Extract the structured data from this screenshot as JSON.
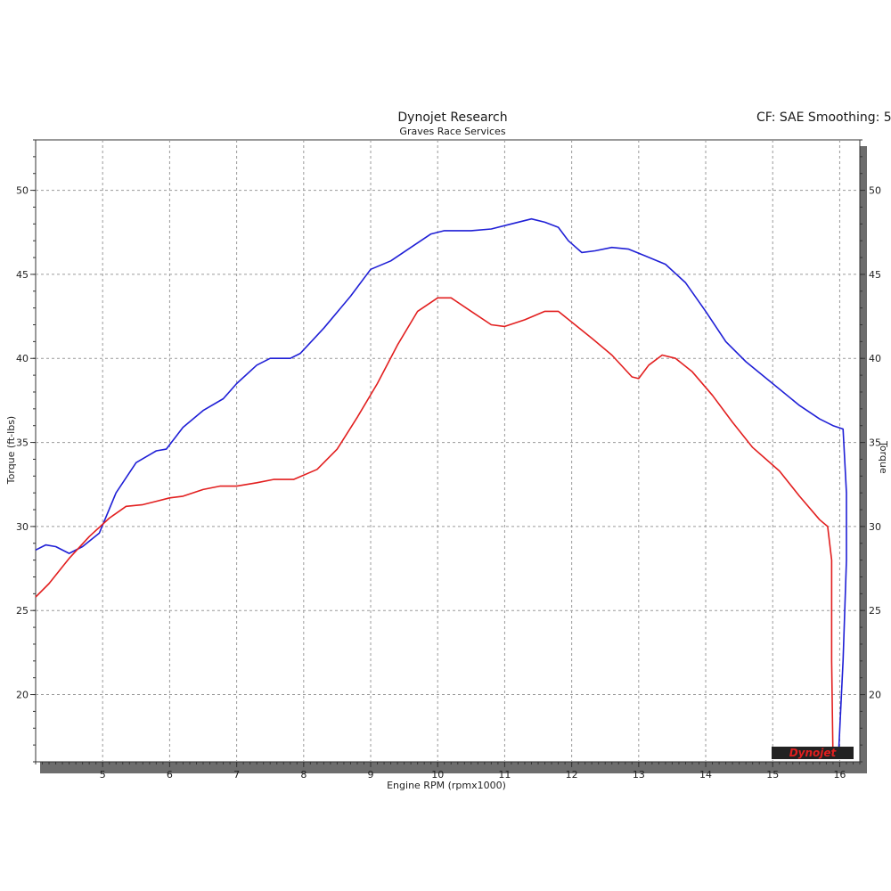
{
  "chart_data": {
    "type": "line",
    "title": "Dynojet Research",
    "subtitle": "Graves Race Services",
    "header_right": "CF: SAE Smoothing: 5",
    "xlabel": "Engine RPM (rpmx1000)",
    "ylabel": "Torque (ft-lbs)",
    "ylabel_right": "Torque",
    "xlim": [
      4.0,
      16.3
    ],
    "ylim": [
      16,
      53
    ],
    "x_ticks": [
      "5",
      "6",
      "7",
      "8",
      "9",
      "10",
      "11",
      "12",
      "13",
      "14",
      "15",
      "16"
    ],
    "y_ticks": [
      "20",
      "25",
      "30",
      "35",
      "40",
      "45",
      "50"
    ],
    "grid": true,
    "logo_text": "Dynojet",
    "series": [
      {
        "color": "#1f1fd6",
        "points": [
          [
            4.0,
            28.6
          ],
          [
            4.15,
            28.9
          ],
          [
            4.3,
            28.8
          ],
          [
            4.5,
            28.4
          ],
          [
            4.7,
            28.8
          ],
          [
            4.95,
            29.6
          ],
          [
            5.2,
            32.0
          ],
          [
            5.5,
            33.8
          ],
          [
            5.8,
            34.5
          ],
          [
            5.95,
            34.6
          ],
          [
            6.2,
            35.9
          ],
          [
            6.5,
            36.9
          ],
          [
            6.8,
            37.6
          ],
          [
            7.0,
            38.5
          ],
          [
            7.3,
            39.6
          ],
          [
            7.5,
            40.0
          ],
          [
            7.8,
            40.0
          ],
          [
            7.95,
            40.3
          ],
          [
            8.3,
            41.8
          ],
          [
            8.7,
            43.7
          ],
          [
            9.0,
            45.3
          ],
          [
            9.3,
            45.8
          ],
          [
            9.6,
            46.6
          ],
          [
            9.9,
            47.4
          ],
          [
            10.1,
            47.6
          ],
          [
            10.5,
            47.6
          ],
          [
            10.8,
            47.7
          ],
          [
            11.1,
            48.0
          ],
          [
            11.4,
            48.3
          ],
          [
            11.6,
            48.1
          ],
          [
            11.8,
            47.8
          ],
          [
            11.95,
            47.0
          ],
          [
            12.15,
            46.3
          ],
          [
            12.35,
            46.4
          ],
          [
            12.6,
            46.6
          ],
          [
            12.85,
            46.5
          ],
          [
            13.1,
            46.1
          ],
          [
            13.4,
            45.6
          ],
          [
            13.7,
            44.5
          ],
          [
            14.0,
            42.8
          ],
          [
            14.3,
            41.0
          ],
          [
            14.6,
            39.8
          ],
          [
            15.0,
            38.5
          ],
          [
            15.4,
            37.2
          ],
          [
            15.7,
            36.4
          ],
          [
            15.9,
            36.0
          ],
          [
            16.05,
            35.8
          ],
          [
            16.1,
            32.0
          ],
          [
            16.1,
            28.0
          ],
          [
            16.05,
            22.0
          ],
          [
            15.98,
            16.2
          ]
        ]
      },
      {
        "color": "#e21f1f",
        "points": [
          [
            4.0,
            25.8
          ],
          [
            4.2,
            26.6
          ],
          [
            4.5,
            28.1
          ],
          [
            4.8,
            29.4
          ],
          [
            5.1,
            30.5
          ],
          [
            5.35,
            31.2
          ],
          [
            5.6,
            31.3
          ],
          [
            5.8,
            31.5
          ],
          [
            6.0,
            31.7
          ],
          [
            6.2,
            31.8
          ],
          [
            6.5,
            32.2
          ],
          [
            6.75,
            32.4
          ],
          [
            7.0,
            32.4
          ],
          [
            7.3,
            32.6
          ],
          [
            7.55,
            32.8
          ],
          [
            7.85,
            32.8
          ],
          [
            8.2,
            33.4
          ],
          [
            8.5,
            34.6
          ],
          [
            8.8,
            36.5
          ],
          [
            9.1,
            38.5
          ],
          [
            9.4,
            40.8
          ],
          [
            9.7,
            42.8
          ],
          [
            10.0,
            43.6
          ],
          [
            10.2,
            43.6
          ],
          [
            10.5,
            42.8
          ],
          [
            10.8,
            42.0
          ],
          [
            11.0,
            41.9
          ],
          [
            11.3,
            42.3
          ],
          [
            11.6,
            42.8
          ],
          [
            11.8,
            42.8
          ],
          [
            12.05,
            42.0
          ],
          [
            12.3,
            41.2
          ],
          [
            12.6,
            40.2
          ],
          [
            12.9,
            38.9
          ],
          [
            13.0,
            38.8
          ],
          [
            13.15,
            39.6
          ],
          [
            13.35,
            40.2
          ],
          [
            13.55,
            40.0
          ],
          [
            13.8,
            39.2
          ],
          [
            14.1,
            37.8
          ],
          [
            14.4,
            36.2
          ],
          [
            14.7,
            34.7
          ],
          [
            15.1,
            33.3
          ],
          [
            15.4,
            31.8
          ],
          [
            15.7,
            30.4
          ],
          [
            15.82,
            30.0
          ],
          [
            15.88,
            28.0
          ],
          [
            15.88,
            22.0
          ],
          [
            15.9,
            16.2
          ]
        ]
      }
    ]
  }
}
